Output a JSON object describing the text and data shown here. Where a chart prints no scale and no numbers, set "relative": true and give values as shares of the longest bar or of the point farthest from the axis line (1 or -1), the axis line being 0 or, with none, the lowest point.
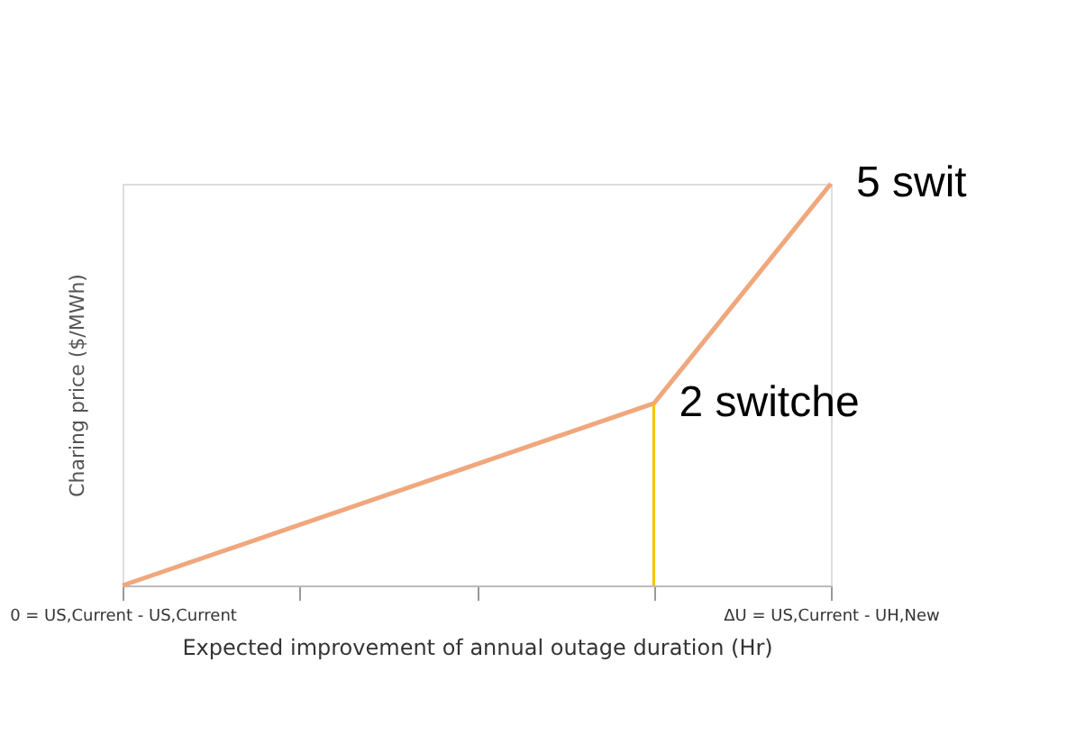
{
  "chart_data": {
    "type": "line",
    "relative": true,
    "xlabel": "Expected improvement of annual outage duration (Hr)",
    "ylabel": "Charing price ($/MWh)",
    "categories": [
      "0 = US,Current - US,Current",
      null,
      null,
      null,
      "ΔU = US,Current - UH,New"
    ],
    "series": [
      {
        "color": "#f0a77c",
        "values": [
          0,
          0.151,
          0.302,
          0.453,
          1
        ]
      }
    ],
    "tick_labels": "x",
    "grid": false,
    "marker": "none",
    "line_style": "solid",
    "annotations": [
      "5 swit",
      "2 switche"
    ]
  }
}
